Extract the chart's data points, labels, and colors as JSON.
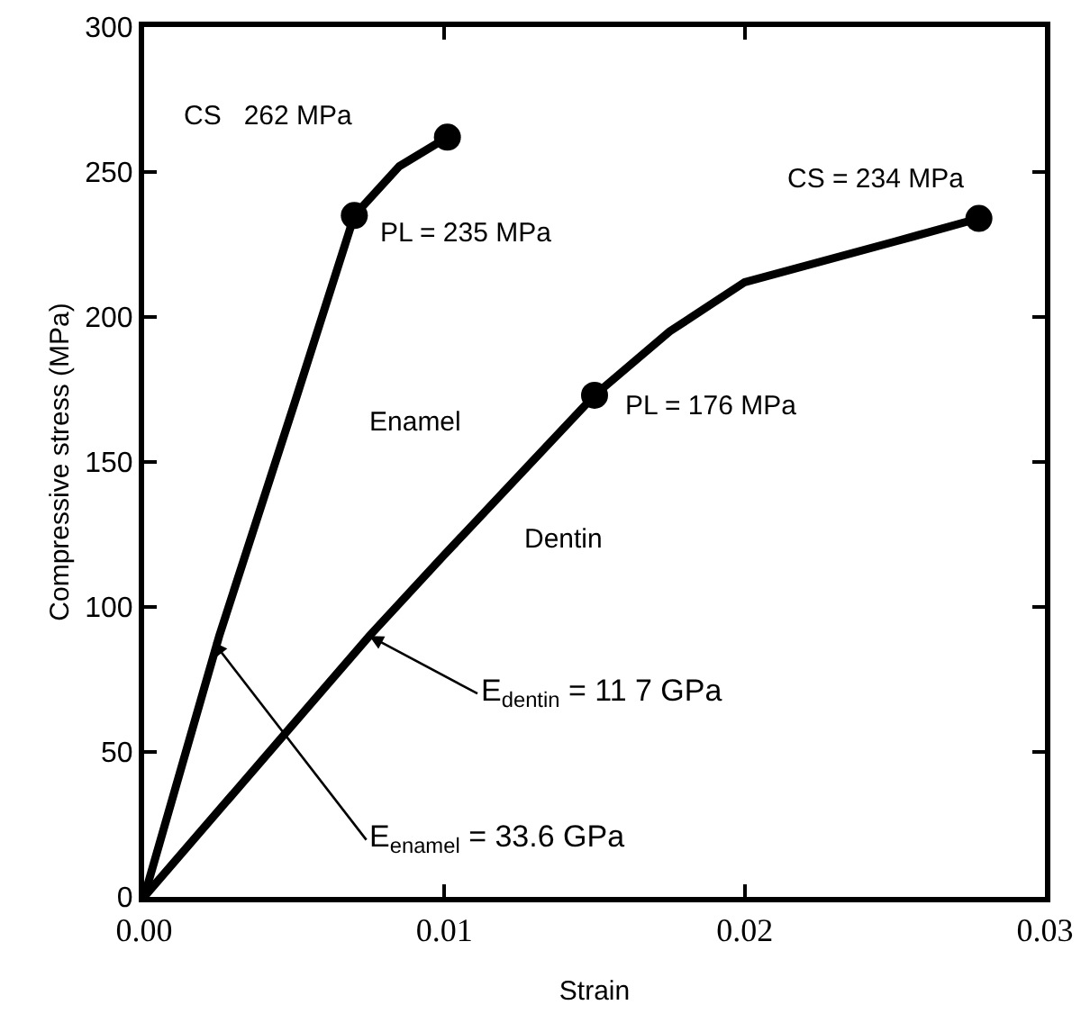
{
  "chart_data": {
    "type": "line",
    "xlabel": "Strain",
    "ylabel": "Compressive stress (MPa)",
    "xlim": [
      0,
      0.03
    ],
    "ylim": [
      0,
      300
    ],
    "xticks": [
      {
        "value": 0,
        "label": "0.00"
      },
      0.01,
      0.02,
      0.03
    ],
    "yticks": [
      0,
      50,
      100,
      150,
      200,
      250,
      300
    ],
    "grid": false,
    "line_style": "solid",
    "series": [
      {
        "color": "#000000",
        "marker": "none",
        "x": [
          0,
          0.0025,
          0.005,
          0.007,
          0.0085,
          0.0101
        ],
        "values": [
          0,
          90,
          170,
          235,
          252,
          262
        ]
      },
      {
        "color": "#000000",
        "marker": "none",
        "x": [
          0,
          0.0075,
          0.01,
          0.015,
          0.0175,
          0.02,
          0.025,
          0.0278
        ],
        "values": [
          0,
          90,
          118,
          173,
          195,
          212,
          226,
          234
        ]
      },
      {
        "type": "scatter",
        "color": "#000000",
        "marker": "circle",
        "x": [
          0.007,
          0.0101,
          0.015,
          0.0278
        ],
        "values": [
          235,
          262,
          173,
          234
        ]
      }
    ],
    "annotations": [
      "CS   262 MPa",
      {
        "text": "PL = 235 MPa",
        "x": 0.007,
        "y": 235
      },
      {
        "text": "CS = 234 MPa",
        "x": 0.0278,
        "y": 234
      },
      {
        "text": "PL = 176 MPa",
        "x": 0.015,
        "y": 173
      },
      "Enamel",
      "Dentin",
      {
        "text": "E$_{dentin}$ = 11 7 GPa",
        "x": 0.0075,
        "y": 90
      },
      {
        "text": "E$_{enamel}$ = 33.6 GPa",
        "x": 0.0023,
        "y": 88
      }
    ]
  }
}
